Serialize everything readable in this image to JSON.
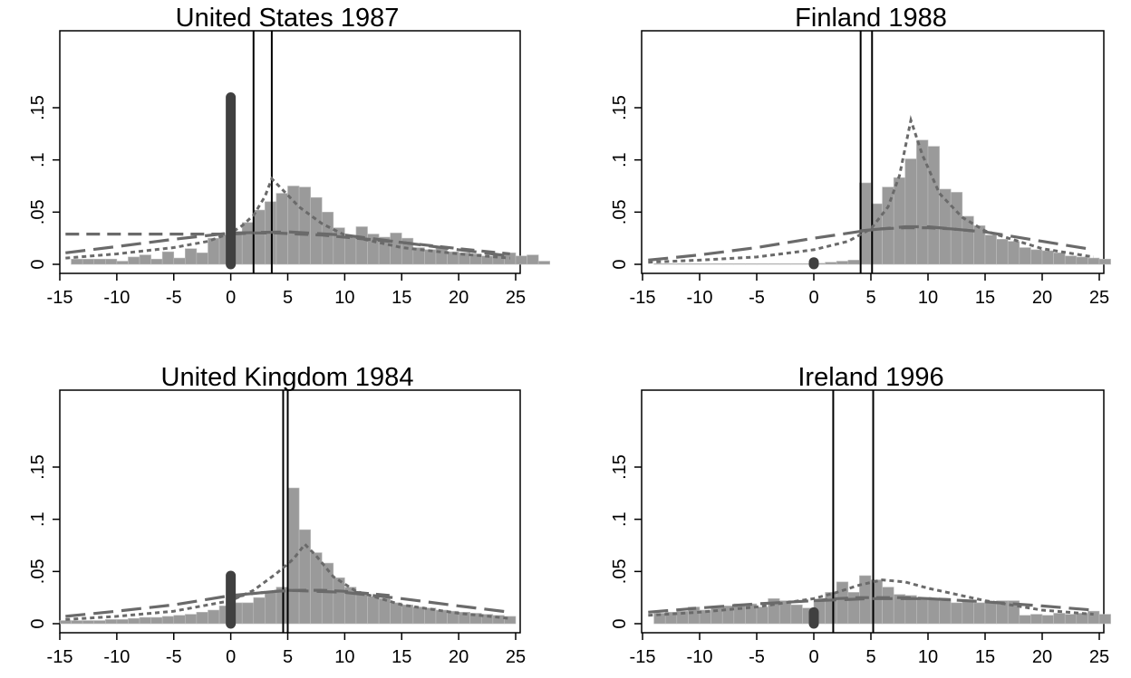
{
  "chart_data": [
    {
      "type": "bar",
      "title": "United States 1987",
      "xlim": [
        -15,
        25
      ],
      "ylim": [
        0,
        0.2
      ],
      "xticks": [
        "-15",
        "-10",
        "-5",
        "0",
        "5",
        "10",
        "15",
        "20",
        "25"
      ],
      "yticks": [
        ".15",
        ".1",
        ".05",
        "0"
      ],
      "histogram": {
        "bin_start": -14,
        "bin_width": 1,
        "values": [
          0.005,
          0.005,
          0.005,
          0.005,
          0.003,
          0.007,
          0.009,
          0.005,
          0.012,
          0.006,
          0.015,
          0.011,
          0.025,
          0.028,
          0.03,
          0.04,
          0.052,
          0.06,
          0.068,
          0.075,
          0.074,
          0.064,
          0.05,
          0.035,
          0.027,
          0.036,
          0.029,
          0.026,
          0.03,
          0.025,
          0.016,
          0.014,
          0.016,
          0.012,
          0.011,
          0.01,
          0.008,
          0.009,
          0.011,
          0.008,
          0.009,
          0.003
        ]
      },
      "spike": {
        "x": 0,
        "value": 0.16
      },
      "vlines": [
        2,
        3.6
      ],
      "curves": [
        {
          "style": "long-dash",
          "x": [
            -14.5,
            -10,
            -5,
            0,
            5,
            10,
            15,
            20,
            24.5
          ],
          "y": [
            0.011,
            0.017,
            0.024,
            0.03,
            0.031,
            0.028,
            0.021,
            0.014,
            0.008
          ]
        },
        {
          "style": "medium-dash",
          "x": [
            -14.5,
            0,
            2,
            4,
            6,
            8,
            10,
            15,
            20,
            24.5
          ],
          "y": [
            0.029,
            0.029,
            0.03,
            0.03,
            0.029,
            0.028,
            0.026,
            0.021,
            0.015,
            0.01
          ]
        },
        {
          "style": "dotted",
          "x": [
            -14.5,
            -10,
            -5,
            -2,
            0,
            1,
            2,
            3,
            3.6,
            4.5,
            6,
            8,
            10,
            15,
            20,
            24.5
          ],
          "y": [
            0.006,
            0.01,
            0.016,
            0.022,
            0.03,
            0.037,
            0.047,
            0.065,
            0.082,
            0.072,
            0.055,
            0.039,
            0.028,
            0.016,
            0.01,
            0.006
          ]
        }
      ]
    },
    {
      "type": "bar",
      "title": "Finland 1988",
      "xlim": [
        -15,
        25
      ],
      "ylim": [
        0,
        0.2
      ],
      "xticks": [
        "-15",
        "-10",
        "-5",
        "0",
        "5",
        "10",
        "15",
        "20",
        "25"
      ],
      "yticks": [
        ".15",
        ".1",
        ".05",
        "0"
      ],
      "histogram": {
        "bin_start": -14,
        "bin_width": 1,
        "values": [
          0,
          0,
          0,
          0,
          0,
          0,
          0,
          0,
          0,
          0,
          0,
          0,
          0,
          0,
          0.001,
          0.002,
          0.003,
          0.004,
          0.078,
          0.058,
          0.074,
          0.083,
          0.101,
          0.119,
          0.113,
          0.072,
          0.069,
          0.046,
          0.037,
          0.028,
          0.024,
          0.022,
          0.016,
          0.014,
          0.013,
          0.011,
          0.008,
          0.007,
          0.006,
          0.005
        ]
      },
      "spike": {
        "x": 0,
        "value": 0.002
      },
      "vlines": [
        4.1,
        5.1
      ],
      "curves": [
        {
          "style": "long-dash",
          "x": [
            -14.5,
            -10,
            -5,
            0,
            5,
            8,
            10,
            15,
            20,
            24.5
          ],
          "y": [
            0.004,
            0.009,
            0.016,
            0.025,
            0.033,
            0.036,
            0.036,
            0.031,
            0.022,
            0.014
          ]
        },
        {
          "style": "medium-dash",
          "x": [
            4,
            6,
            8,
            10,
            12,
            14
          ],
          "y": [
            0.032,
            0.034,
            0.035,
            0.035,
            0.034,
            0.032
          ]
        },
        {
          "style": "dotted",
          "x": [
            -14.5,
            -10,
            -5,
            0,
            3,
            5,
            6.5,
            7.5,
            8.5,
            9.5,
            11,
            13,
            15,
            20,
            24.5
          ],
          "y": [
            0.002,
            0.004,
            0.007,
            0.014,
            0.022,
            0.034,
            0.055,
            0.085,
            0.138,
            0.105,
            0.068,
            0.045,
            0.032,
            0.015,
            0.007
          ]
        }
      ]
    },
    {
      "type": "bar",
      "title": "United Kingdom 1984",
      "xlim": [
        -15,
        25
      ],
      "ylim": [
        0,
        0.2
      ],
      "xticks": [
        "-15",
        "-10",
        "-5",
        "0",
        "5",
        "10",
        "15",
        "20",
        "25"
      ],
      "yticks": [
        ".15",
        ".1",
        ".05",
        "0"
      ],
      "histogram": {
        "bin_start": -15,
        "bin_width": 1,
        "values": [
          0.003,
          0.003,
          0.003,
          0.003,
          0.004,
          0.004,
          0.005,
          0.006,
          0.006,
          0.007,
          0.008,
          0.009,
          0.011,
          0.013,
          0.017,
          0.02,
          0.02,
          0.025,
          0.03,
          0.035,
          0.13,
          0.09,
          0.068,
          0.058,
          0.044,
          0.035,
          0.03,
          0.026,
          0.024,
          0.02,
          0.018,
          0.016,
          0.015,
          0.013,
          0.012,
          0.011,
          0.01,
          0.009,
          0.008,
          0.007
        ]
      },
      "spike": {
        "x": 0,
        "value": 0.046
      },
      "vlines": [
        4.6,
        5
      ],
      "curves": [
        {
          "style": "long-dash",
          "x": [
            -14.5,
            -10,
            -5,
            0,
            5,
            10,
            15,
            20,
            24.5
          ],
          "y": [
            0.007,
            0.012,
            0.018,
            0.027,
            0.032,
            0.03,
            0.024,
            0.017,
            0.011
          ]
        },
        {
          "style": "medium-dash",
          "x": [
            0,
            2,
            4,
            6,
            8,
            10,
            12,
            14
          ],
          "y": [
            0.025,
            0.029,
            0.031,
            0.032,
            0.032,
            0.031,
            0.029,
            0.027
          ]
        },
        {
          "style": "dotted",
          "x": [
            -14.5,
            -10,
            -5,
            0,
            2,
            4,
            5.5,
            6.5,
            7.5,
            9,
            11,
            15,
            20,
            24.5
          ],
          "y": [
            0.004,
            0.007,
            0.012,
            0.022,
            0.032,
            0.048,
            0.062,
            0.076,
            0.065,
            0.045,
            0.031,
            0.018,
            0.01,
            0.005
          ]
        }
      ]
    },
    {
      "type": "bar",
      "title": "Ireland 1996",
      "xlim": [
        -15,
        25
      ],
      "ylim": [
        0,
        0.2
      ],
      "xticks": [
        "-15",
        "-10",
        "-5",
        "0",
        "5",
        "10",
        "15",
        "20",
        "25"
      ],
      "yticks": [
        ".15",
        ".1",
        ".05",
        "0"
      ],
      "histogram": {
        "bin_start": -14,
        "bin_width": 1,
        "values": [
          0.01,
          0.011,
          0.012,
          0.016,
          0.013,
          0.015,
          0.017,
          0.019,
          0.019,
          0.016,
          0.024,
          0.022,
          0.018,
          0.015,
          0.022,
          0.03,
          0.04,
          0.03,
          0.046,
          0.042,
          0.035,
          0.028,
          0.027,
          0.024,
          0.023,
          0.022,
          0.02,
          0.021,
          0.02,
          0.021,
          0.022,
          0.022,
          0.008,
          0.009,
          0.008,
          0.01,
          0.009,
          0.01,
          0.012,
          0.009
        ]
      },
      "spike": {
        "x": 0,
        "value": 0.011
      },
      "vlines": [
        1.7,
        5.2
      ],
      "curves": [
        {
          "style": "long-dash",
          "x": [
            -14.5,
            -10,
            -5,
            0,
            5,
            10,
            15,
            20,
            24.5
          ],
          "y": [
            0.011,
            0.015,
            0.019,
            0.022,
            0.024,
            0.024,
            0.021,
            0.017,
            0.013
          ]
        },
        {
          "style": "medium-dash",
          "x": [
            0,
            2,
            4,
            6,
            8,
            10,
            12
          ],
          "y": [
            0.022,
            0.024,
            0.025,
            0.025,
            0.025,
            0.024,
            0.023
          ]
        },
        {
          "style": "dotted",
          "x": [
            -14.5,
            -10,
            -5,
            0,
            2,
            4,
            6,
            8,
            10,
            15,
            20,
            24.5
          ],
          "y": [
            0.008,
            0.011,
            0.016,
            0.024,
            0.03,
            0.037,
            0.042,
            0.04,
            0.034,
            0.022,
            0.013,
            0.009
          ]
        }
      ]
    }
  ]
}
